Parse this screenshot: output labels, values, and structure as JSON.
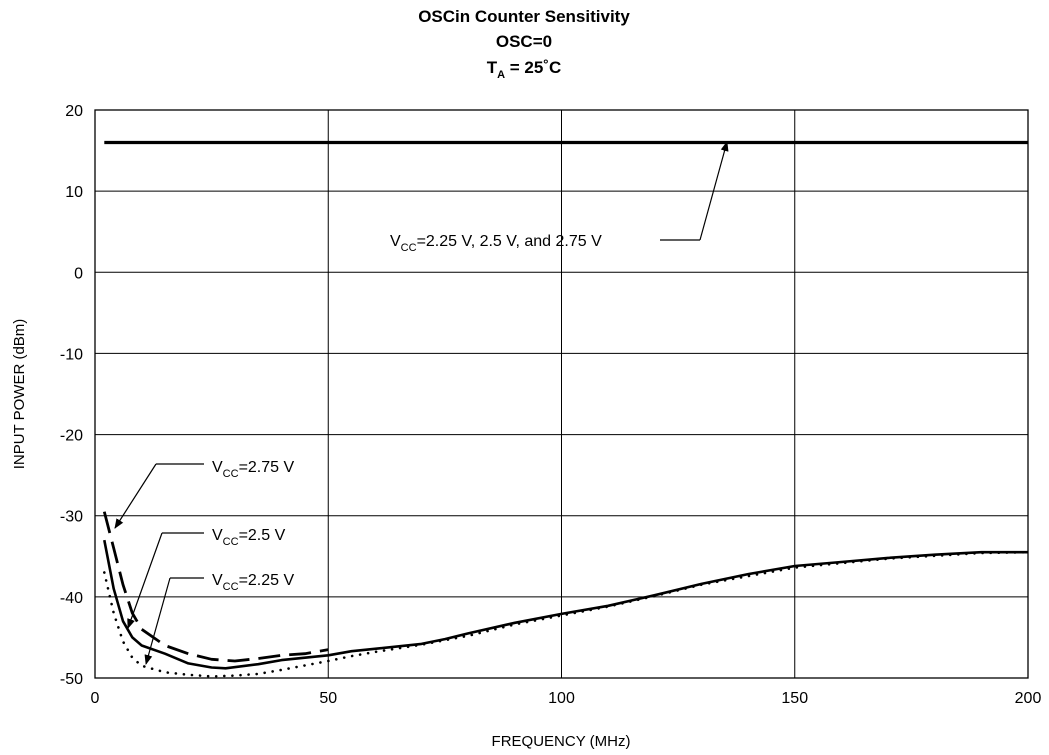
{
  "chart_data": {
    "type": "line",
    "title": [
      "OSCin Counter Sensitivity",
      "OSC=0"
    ],
    "title_temp": {
      "main": "T",
      "sub": "A",
      "rest": " = 25˚C"
    },
    "xlabel": "FREQUENCY (MHz)",
    "ylabel": "INPUT POWER (dBm)",
    "xlim": [
      0,
      200
    ],
    "ylim": [
      -50,
      20
    ],
    "xticks": [
      0,
      50,
      100,
      150,
      200
    ],
    "yticks": [
      -50,
      -40,
      -30,
      -20,
      -10,
      0,
      10,
      20
    ],
    "grid": true,
    "series": [
      {
        "name": "VCC=2.25 V, 2.5 V, and 2.75 V",
        "style": "solid-thick",
        "x": [
          2,
          200
        ],
        "y": [
          16,
          16
        ]
      },
      {
        "name": "VCC=2.75 V",
        "style": "dashed",
        "x": [
          2,
          4,
          6,
          8,
          10,
          15,
          20,
          25,
          30,
          35,
          40,
          45,
          50
        ],
        "y": [
          -29.5,
          -34,
          -38.5,
          -42,
          -44,
          -46,
          -47,
          -47.7,
          -47.9,
          -47.6,
          -47.2,
          -47,
          -46.5
        ]
      },
      {
        "name": "VCC=2.5 V",
        "style": "solid",
        "x": [
          2,
          4,
          6,
          8,
          10,
          15,
          20,
          25,
          28,
          35,
          40,
          50,
          55,
          60,
          70,
          75,
          80,
          90,
          100,
          110,
          120,
          130,
          140,
          150,
          160,
          170,
          180,
          190,
          200
        ],
        "y": [
          -33,
          -39,
          -43,
          -45,
          -46,
          -47,
          -48.2,
          -48.7,
          -48.8,
          -48.3,
          -47.8,
          -47.2,
          -46.7,
          -46.4,
          -45.8,
          -45.2,
          -44.5,
          -43.2,
          -42.1,
          -41.1,
          -39.8,
          -38.4,
          -37.2,
          -36.2,
          -35.7,
          -35.2,
          -34.8,
          -34.5,
          -34.5
        ]
      },
      {
        "name": "VCC=2.25 V",
        "style": "dotted",
        "x": [
          2,
          4,
          6,
          8,
          10,
          15,
          20,
          25,
          30,
          35,
          40,
          50,
          55,
          60,
          70,
          80,
          90,
          100,
          110,
          120,
          130,
          150,
          170,
          190,
          200
        ],
        "y": [
          -37,
          -42,
          -45.5,
          -47.5,
          -48.5,
          -49.3,
          -49.6,
          -49.8,
          -49.7,
          -49.5,
          -49,
          -47.9,
          -47.3,
          -46.8,
          -45.9,
          -44.8,
          -43.4,
          -42.3,
          -41.2,
          -39.9,
          -38.5,
          -36.4,
          -35.3,
          -34.6,
          -34.5
        ]
      }
    ],
    "annotations": [
      {
        "main": "V",
        "sub": "CC",
        "rest": "=2.25 V, 2.5 V, and 2.75 V"
      },
      {
        "main": "V",
        "sub": "CC",
        "rest": "=2.75 V"
      },
      {
        "main": "V",
        "sub": "CC",
        "rest": "=2.5 V"
      },
      {
        "main": "V",
        "sub": "CC",
        "rest": "=2.25 V"
      }
    ]
  }
}
